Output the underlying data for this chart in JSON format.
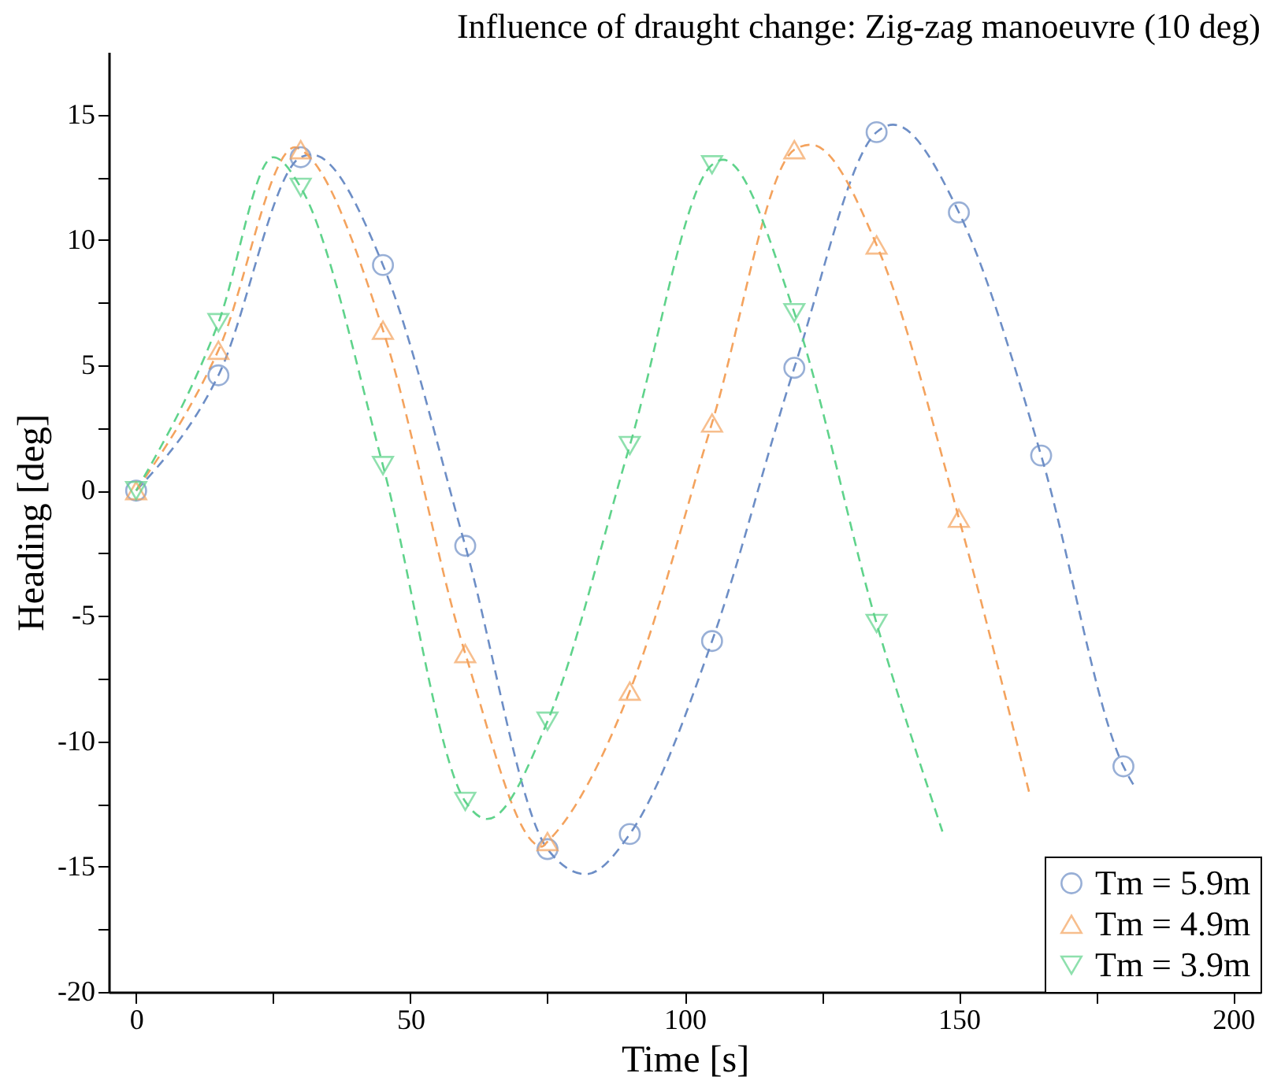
{
  "chart_data": {
    "type": "line",
    "title": "Influence of draught change: Zig-zag manoeuvre (10 deg)",
    "xlabel": "Time [s]",
    "ylabel": "Heading [deg]",
    "xlim": [
      -5,
      205
    ],
    "xticks": [
      0,
      {
        "value": 25,
        "label": null
      },
      50,
      {
        "value": 75,
        "label": null
      },
      100,
      {
        "value": 125,
        "label": null
      },
      150,
      {
        "value": 175,
        "label": null
      },
      200
    ],
    "ylim": [
      -20,
      17.5
    ],
    "yticks": [
      -20,
      {
        "value": -17.5,
        "label": null
      },
      -15,
      {
        "value": -12.5,
        "label": null
      },
      -10,
      {
        "value": -7.5,
        "label": null
      },
      -5,
      {
        "value": -2.5,
        "label": null
      },
      0,
      {
        "value": 2.5,
        "label": null
      },
      5,
      {
        "value": 7.5,
        "label": null
      },
      10,
      {
        "value": 12.5,
        "label": null
      },
      15
    ],
    "grid": false,
    "legend": "bottom right",
    "series": [
      {
        "type": "line",
        "line_style": "dashed",
        "marker": "none",
        "color": "#6d8ec6",
        "x": [
          0,
          15,
          30,
          32,
          45,
          60,
          75,
          82,
          90,
          105,
          120,
          135,
          138,
          150,
          165,
          180,
          182
        ],
        "values": [
          0,
          4.6,
          13.3,
          13.4,
          9.0,
          -2.2,
          -14.3,
          -15.3,
          -13.7,
          -6.0,
          4.9,
          14.3,
          14.6,
          11.1,
          1.4,
          -11.0,
          -11.8
        ]
      },
      {
        "type": "line",
        "line_style": "dashed",
        "marker": "none",
        "color": "#f4a35e",
        "x": [
          0,
          15,
          29,
          30,
          45,
          60,
          74,
          75,
          90,
          105,
          120,
          123,
          135,
          150,
          163
        ],
        "values": [
          0,
          5.6,
          13.7,
          13.6,
          6.4,
          -6.5,
          -14.2,
          -14.0,
          -8.0,
          2.7,
          13.6,
          13.8,
          9.8,
          -1.1,
          -12.2
        ]
      },
      {
        "type": "line",
        "line_style": "dashed",
        "marker": "none",
        "color": "#5fd38b",
        "x": [
          0,
          15,
          25,
          30,
          45,
          60,
          64,
          75,
          90,
          105,
          107,
          120,
          135,
          147
        ],
        "values": [
          0,
          6.7,
          13.3,
          12.1,
          1.0,
          -12.4,
          -13.1,
          -9.2,
          1.8,
          13.0,
          13.2,
          7.1,
          -5.3,
          -13.6
        ]
      },
      {
        "type": "scatter",
        "name": "Tm = 5.9m",
        "marker": "circle",
        "color": "#6d8ec6",
        "x": [
          0,
          15,
          30,
          45,
          60,
          75,
          90,
          105,
          120,
          135,
          150,
          165,
          180
        ],
        "values": [
          0,
          4.6,
          13.3,
          9.0,
          -2.2,
          -14.3,
          -13.7,
          -6.0,
          4.9,
          14.3,
          11.1,
          1.4,
          -11.0
        ]
      },
      {
        "type": "scatter",
        "name": "Tm = 4.9m",
        "marker": "triangle",
        "color": "#f4a35e",
        "x": [
          0,
          15,
          30,
          45,
          60,
          75,
          90,
          105,
          120,
          135,
          150
        ],
        "values": [
          0,
          5.6,
          13.6,
          6.4,
          -6.5,
          -14.0,
          -8.0,
          2.7,
          13.6,
          9.8,
          -1.1
        ]
      },
      {
        "type": "scatter",
        "name": "Tm = 3.9m",
        "marker": "triangle-down",
        "color": "#5fd38b",
        "x": [
          0,
          15,
          30,
          45,
          60,
          75,
          90,
          105,
          120,
          135
        ],
        "values": [
          0,
          6.7,
          12.1,
          1.0,
          -12.4,
          -9.2,
          1.8,
          13.0,
          7.1,
          -5.3
        ]
      }
    ]
  }
}
